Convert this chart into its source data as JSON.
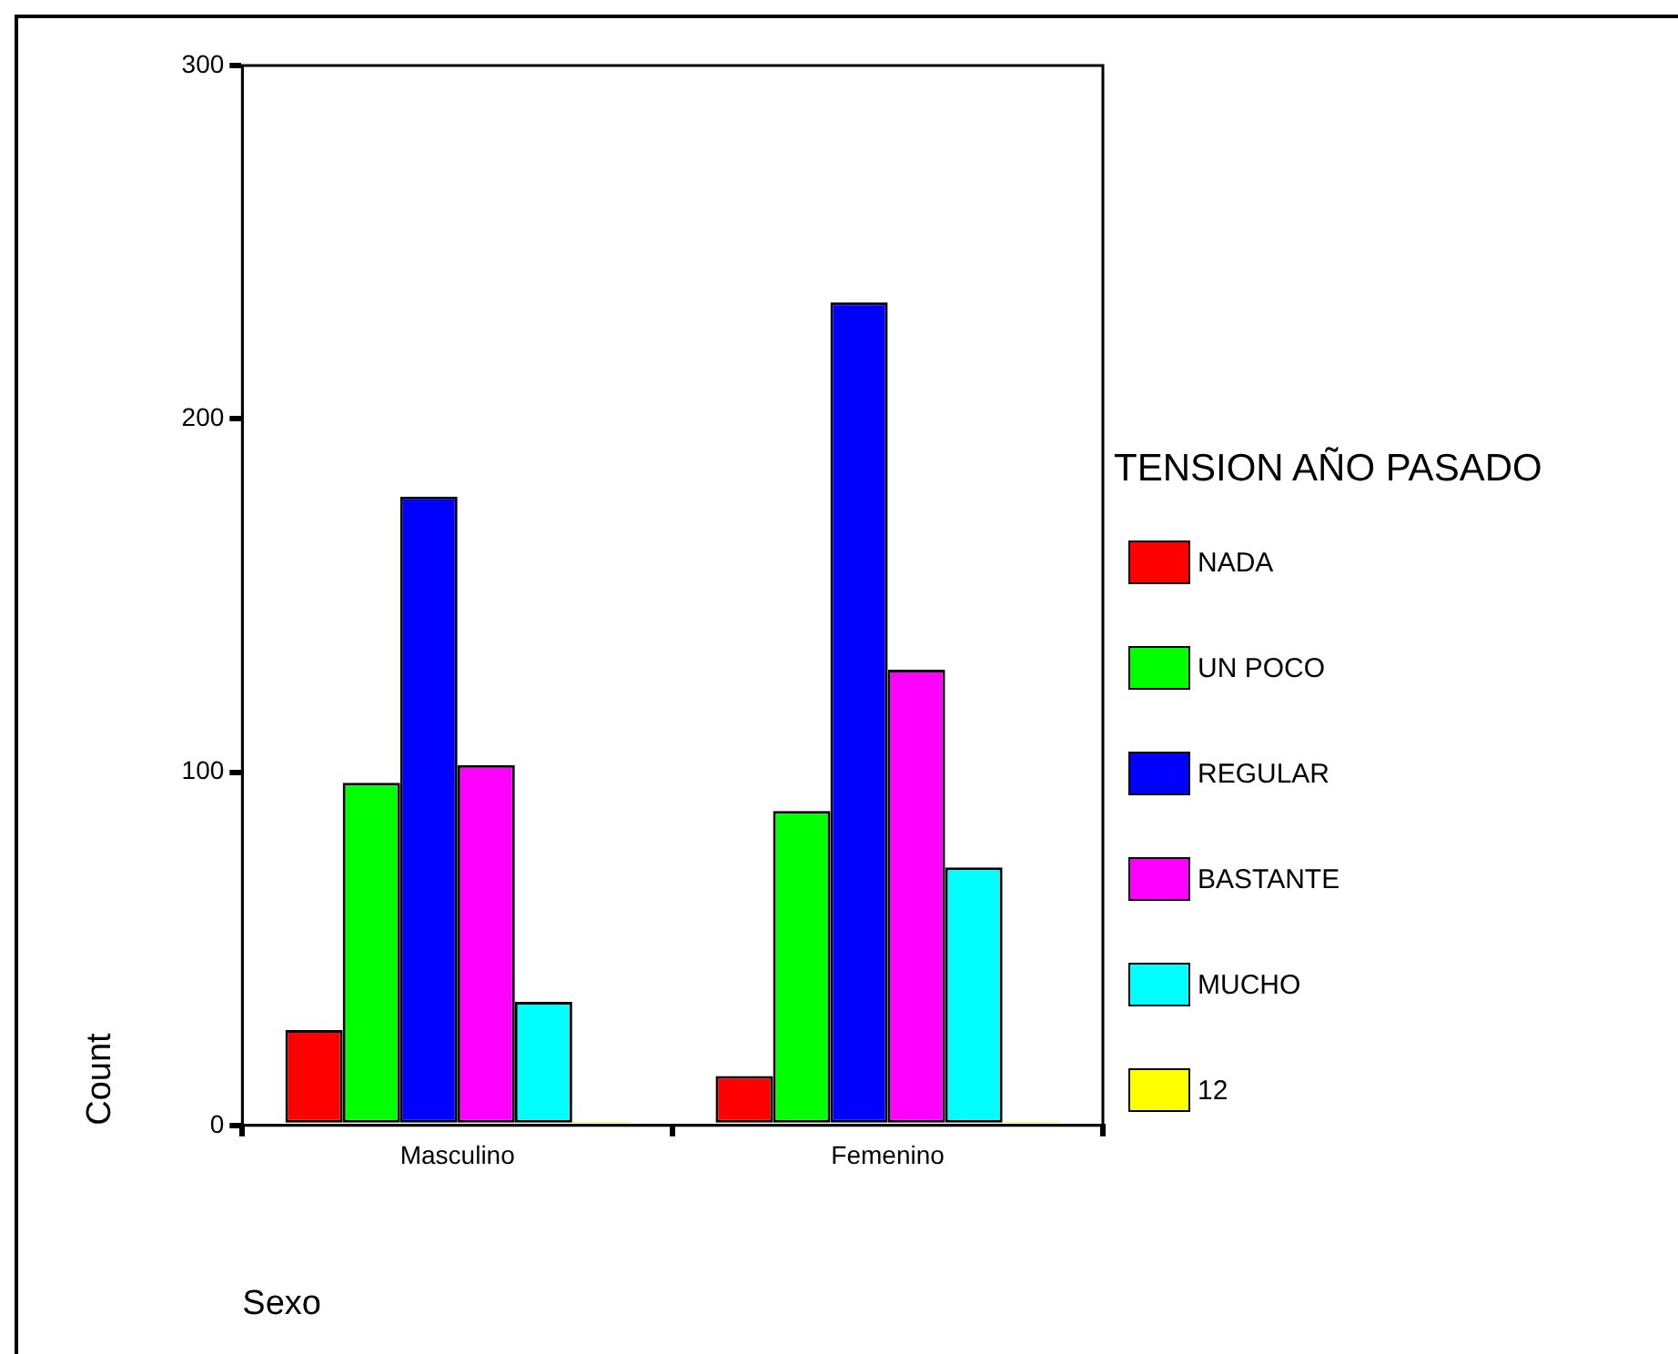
{
  "chart_data": {
    "type": "bar",
    "xlabel": "Sexo",
    "ylabel": "Count",
    "legend_title": "TENSION AÑO PASADO",
    "categories": [
      "Masculino",
      "Femenino"
    ],
    "series": [
      {
        "name": "NADA",
        "color": "#ff0000",
        "values": [
          27,
          14
        ]
      },
      {
        "name": "UN POCO",
        "color": "#00ff00",
        "values": [
          97,
          89
        ]
      },
      {
        "name": "REGULAR",
        "color": "#0000ff",
        "values": [
          178,
          233
        ]
      },
      {
        "name": "BASTANTE",
        "color": "#ff00ff",
        "values": [
          102,
          129
        ]
      },
      {
        "name": "MUCHO",
        "color": "#00ffff",
        "values": [
          35,
          73
        ]
      },
      {
        "name": "12",
        "color": "#ffff00",
        "values": [
          1,
          1
        ]
      }
    ],
    "ylim": [
      0,
      300
    ],
    "yticks": [
      0,
      100,
      200,
      300
    ],
    "grid": false,
    "legend": "right"
  }
}
